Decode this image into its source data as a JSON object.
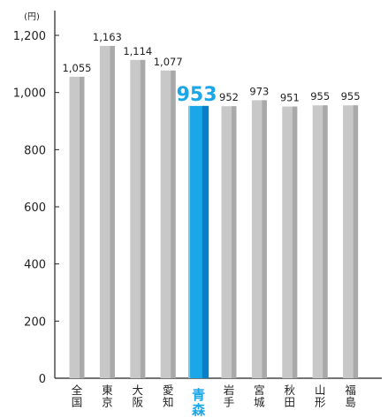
{
  "chart_data": {
    "type": "bar",
    "unit": "(円)",
    "categories": [
      "全国",
      "東京",
      "大阪",
      "愛知",
      "青森",
      "岩手",
      "宮城",
      "秋田",
      "山形",
      "福島"
    ],
    "values": [
      1055,
      1163,
      1114,
      1077,
      953,
      952,
      973,
      951,
      955,
      955
    ],
    "value_labels": [
      "1,055",
      "1,163",
      "1,114",
      "1,077",
      "953",
      "952",
      "973",
      "951",
      "955",
      "955"
    ],
    "highlight": "青森",
    "ylim": [
      0,
      1300
    ],
    "yticks": [
      0,
      200,
      400,
      600,
      800,
      1000,
      1200
    ],
    "ytick_labels": [
      "0",
      "200",
      "400",
      "600",
      "800",
      "1,000",
      "1,200"
    ],
    "grid": false,
    "colors": {
      "bar": "#c8c8c8",
      "bar_shade": "#a9a9a9",
      "highlight": "#1ba6e8",
      "highlight_shade": "#0a7fc8",
      "axis": "#222222"
    }
  }
}
